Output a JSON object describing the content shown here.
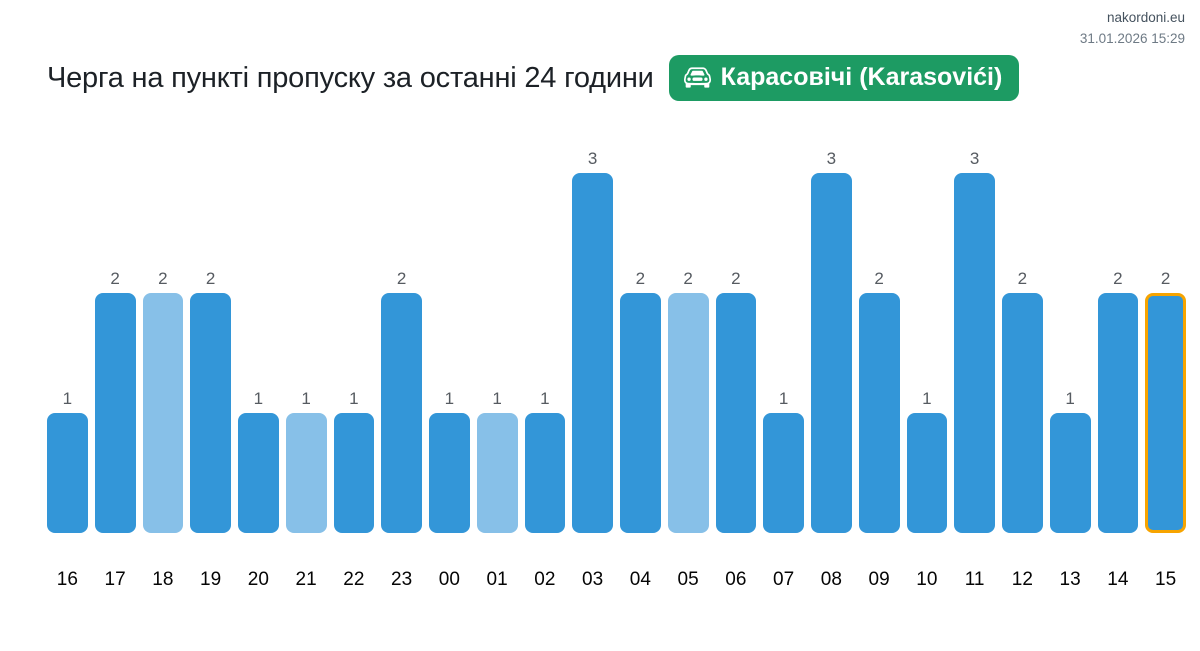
{
  "header": {
    "site": "nakordoni.eu",
    "timestamp": "31.01.2026 15:29"
  },
  "badge": {
    "icon": "car-front-icon",
    "label": "Карасовічі (Karasovići)",
    "background_color": "#1d9b63",
    "text_color": "#ffffff"
  },
  "chart_data": {
    "type": "bar",
    "title": "Черга на пункті пропуску за останні 24 години",
    "xlabel": "",
    "ylabel": "",
    "ylim": [
      0,
      3
    ],
    "grid": false,
    "legend": "none",
    "value_labels_shown": true,
    "colors": {
      "bar_primary": "#3396d8",
      "bar_alternate": "#87c0e8",
      "highlight_border": "#f7a400",
      "value_label": "#565b61",
      "hour_label": "#050505"
    },
    "categories": [
      "16",
      "17",
      "18",
      "19",
      "20",
      "21",
      "22",
      "23",
      "00",
      "01",
      "02",
      "03",
      "04",
      "05",
      "06",
      "07",
      "08",
      "09",
      "10",
      "11",
      "12",
      "13",
      "14",
      "15"
    ],
    "values": [
      1,
      2,
      2,
      2,
      1,
      1,
      1,
      2,
      1,
      1,
      1,
      3,
      2,
      2,
      2,
      1,
      3,
      2,
      1,
      3,
      2,
      1,
      2,
      2
    ],
    "bars": [
      {
        "hour": "16",
        "value": 1,
        "variant": "primary",
        "highlight": false
      },
      {
        "hour": "17",
        "value": 2,
        "variant": "primary",
        "highlight": false
      },
      {
        "hour": "18",
        "value": 2,
        "variant": "alternate",
        "highlight": false
      },
      {
        "hour": "19",
        "value": 2,
        "variant": "primary",
        "highlight": false
      },
      {
        "hour": "20",
        "value": 1,
        "variant": "primary",
        "highlight": false
      },
      {
        "hour": "21",
        "value": 1,
        "variant": "alternate",
        "highlight": false
      },
      {
        "hour": "22",
        "value": 1,
        "variant": "primary",
        "highlight": false
      },
      {
        "hour": "23",
        "value": 2,
        "variant": "primary",
        "highlight": false
      },
      {
        "hour": "00",
        "value": 1,
        "variant": "primary",
        "highlight": false
      },
      {
        "hour": "01",
        "value": 1,
        "variant": "alternate",
        "highlight": false
      },
      {
        "hour": "02",
        "value": 1,
        "variant": "primary",
        "highlight": false
      },
      {
        "hour": "03",
        "value": 3,
        "variant": "primary",
        "highlight": false
      },
      {
        "hour": "04",
        "value": 2,
        "variant": "primary",
        "highlight": false
      },
      {
        "hour": "05",
        "value": 2,
        "variant": "alternate",
        "highlight": false
      },
      {
        "hour": "06",
        "value": 2,
        "variant": "primary",
        "highlight": false
      },
      {
        "hour": "07",
        "value": 1,
        "variant": "primary",
        "highlight": false
      },
      {
        "hour": "08",
        "value": 3,
        "variant": "primary",
        "highlight": false
      },
      {
        "hour": "09",
        "value": 2,
        "variant": "primary",
        "highlight": false
      },
      {
        "hour": "10",
        "value": 1,
        "variant": "primary",
        "highlight": false
      },
      {
        "hour": "11",
        "value": 3,
        "variant": "primary",
        "highlight": false
      },
      {
        "hour": "12",
        "value": 2,
        "variant": "primary",
        "highlight": false
      },
      {
        "hour": "13",
        "value": 1,
        "variant": "primary",
        "highlight": false
      },
      {
        "hour": "14",
        "value": 2,
        "variant": "primary",
        "highlight": false
      },
      {
        "hour": "15",
        "value": 2,
        "variant": "primary",
        "highlight": true
      }
    ]
  }
}
